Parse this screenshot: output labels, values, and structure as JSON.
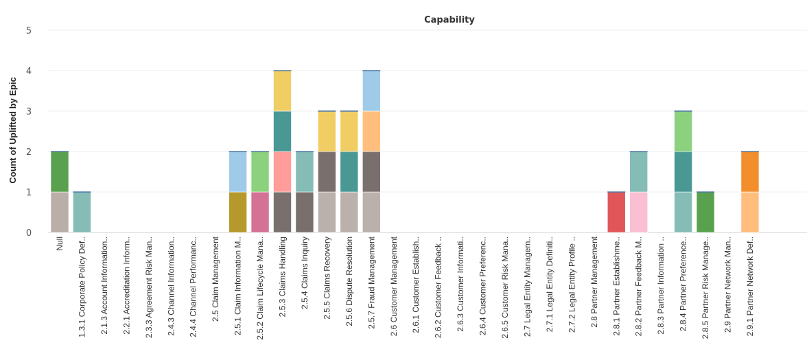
{
  "chart_data": {
    "type": "bar",
    "stacked": true,
    "title": "Capability",
    "xlabel": "",
    "ylabel": "Count of Uplifted by Epic",
    "ylim": [
      0,
      5
    ],
    "yticks": [
      0,
      1,
      2,
      3,
      4,
      5
    ],
    "grid": true,
    "categories": [
      "Null",
      "1.3.1 Corporate Policy Def..",
      "2.1.3 Account Information..",
      "2.2.1 Accreditation Inform..",
      "2.3.3 Agreement Risk Man..",
      "2.4.3 Channel Information..",
      "2.4.4 Channel Performanc..",
      "2.5 Claim Management",
      "2.5.1 Claim Information M..",
      "2.5.2 Claim Lifecycle Mana..",
      "2.5.3 Claims Handling",
      "2.5.4 Claims Inquiry",
      "2.5.5 Claims Recovery",
      "2.5.6 Dispute Resolution",
      "2.5.7 Fraud Management",
      "2.6 Customer Management",
      "2.6.1 Customer Establish..",
      "2.6.2 Customer Feedback ..",
      "2.6.3 Customer Informati..",
      "2.6.4 Customer Preferenc..",
      "2.6.5 Customer Risk Mana..",
      "2.7 Legal Entity Managem..",
      "2.7.1 Legal Entity Definiti..",
      "2.7.2 Legal Entity Profile ..",
      "2.8 Partner Management",
      "2.8.1 Partner Establishme..",
      "2.8.2 Partner Feedback M..",
      "2.8.3 Partner Information ..",
      "2.8.4 Partner Preference..",
      "2.8.5 Partner Risk Manage..",
      "2.9 Partner Network Man..",
      "2.9.1 Partner Network Def.."
    ],
    "stacks": [
      [
        {
          "value": 1,
          "color": "#b9aea8"
        },
        {
          "value": 1,
          "color": "#59a14f"
        }
      ],
      [
        {
          "value": 1,
          "color": "#86bcb6"
        }
      ],
      [],
      [],
      [],
      [],
      [],
      [],
      [
        {
          "value": 1,
          "color": "#b6992d"
        },
        {
          "value": 1,
          "color": "#a0cbe8"
        }
      ],
      [
        {
          "value": 1,
          "color": "#d37295"
        },
        {
          "value": 1,
          "color": "#8cd17d"
        }
      ],
      [
        {
          "value": 1,
          "color": "#79706e"
        },
        {
          "value": 1,
          "color": "#ff9d9a"
        },
        {
          "value": 1,
          "color": "#499894"
        },
        {
          "value": 1,
          "color": "#f1ce63"
        }
      ],
      [
        {
          "value": 1,
          "color": "#79706e"
        },
        {
          "value": 1,
          "color": "#86bcb6"
        }
      ],
      [
        {
          "value": 1,
          "color": "#bab0ac"
        },
        {
          "value": 1,
          "color": "#79706e"
        },
        {
          "value": 1,
          "color": "#f1ce63"
        }
      ],
      [
        {
          "value": 1,
          "color": "#bab0ac"
        },
        {
          "value": 1,
          "color": "#499894"
        },
        {
          "value": 1,
          "color": "#f1ce63"
        }
      ],
      [
        {
          "value": 1,
          "color": "#bab0ac"
        },
        {
          "value": 1,
          "color": "#79706e"
        },
        {
          "value": 1,
          "color": "#ffbe7d"
        },
        {
          "value": 1,
          "color": "#a0cbe8"
        }
      ],
      [],
      [],
      [],
      [],
      [],
      [],
      [],
      [],
      [],
      [],
      [
        {
          "value": 1,
          "color": "#e15759"
        }
      ],
      [
        {
          "value": 1,
          "color": "#fabfd2"
        },
        {
          "value": 1,
          "color": "#86bcb6"
        }
      ],
      [],
      [
        {
          "value": 1,
          "color": "#86bcb6"
        },
        {
          "value": 1,
          "color": "#499894"
        },
        {
          "value": 1,
          "color": "#8cd17d"
        }
      ],
      [
        {
          "value": 1,
          "color": "#59a14f"
        }
      ],
      [],
      [
        {
          "value": 1,
          "color": "#ffbe7d"
        },
        {
          "value": 1,
          "color": "#f28e2b"
        }
      ]
    ]
  }
}
